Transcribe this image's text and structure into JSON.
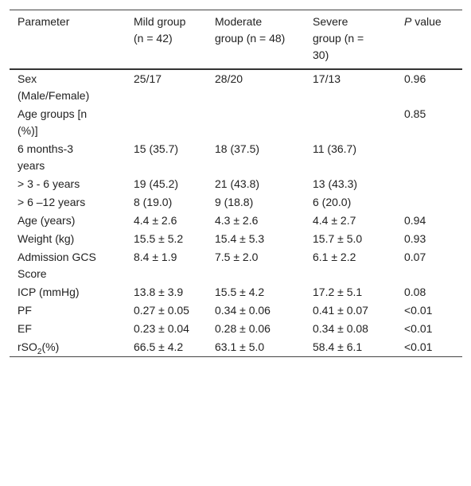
{
  "table": {
    "header": [
      "Parameter",
      "Mild group (n = 42)",
      "Moderate group (n = 48)",
      "Severe group (n = 30)",
      {
        "italic": "P",
        "text": "value"
      }
    ],
    "rows": [
      [
        "Sex (Male/Female)",
        "25/17",
        "28/20",
        "17/13",
        "0.96"
      ],
      [
        "Age groups [n (%)]",
        null,
        null,
        null,
        "0.85"
      ],
      [
        "6 months-3 years",
        "15 (35.7)",
        "18 (37.5)",
        "11 (36.7)",
        null
      ],
      [
        "> 3 - 6 years",
        "19 (45.2)",
        "21 (43.8)",
        "13 (43.3)",
        null
      ],
      [
        "> 6 –12 years",
        "8 (19.0)",
        "9 (18.8)",
        "6 (20.0)",
        null
      ],
      [
        "Age (years)",
        "4.4 ± 2.6",
        "4.3 ± 2.6",
        "4.4 ± 2.7",
        "0.94"
      ],
      [
        "Weight (kg)",
        "15.5 ± 5.2",
        "15.4 ± 5.3",
        "15.7 ± 5.0",
        "0.93"
      ],
      [
        "Admission GCS Score",
        "8.4 ± 1.9",
        "7.5 ± 2.0",
        "6.1 ± 2.2",
        "0.07"
      ],
      [
        "ICP (mmHg)",
        "13.8 ± 3.9",
        "15.5 ± 4.2",
        "17.2 ± 5.1",
        "0.08"
      ],
      [
        "PF",
        "0.27 ± 0.05",
        "0.34 ± 0.06",
        "0.41 ± 0.07",
        "<0.01"
      ],
      [
        "EF",
        "0.23 ± 0.04",
        "0.28 ± 0.06",
        "0.34 ± 0.08",
        "<0.01"
      ],
      [
        {
          "text": "rSO",
          "sub": "2",
          "suffix": "(%)"
        },
        "66.5 ± 4.2",
        "63.1 ± 5.0",
        "58.4 ± 6.1",
        "<0.01"
      ]
    ]
  }
}
